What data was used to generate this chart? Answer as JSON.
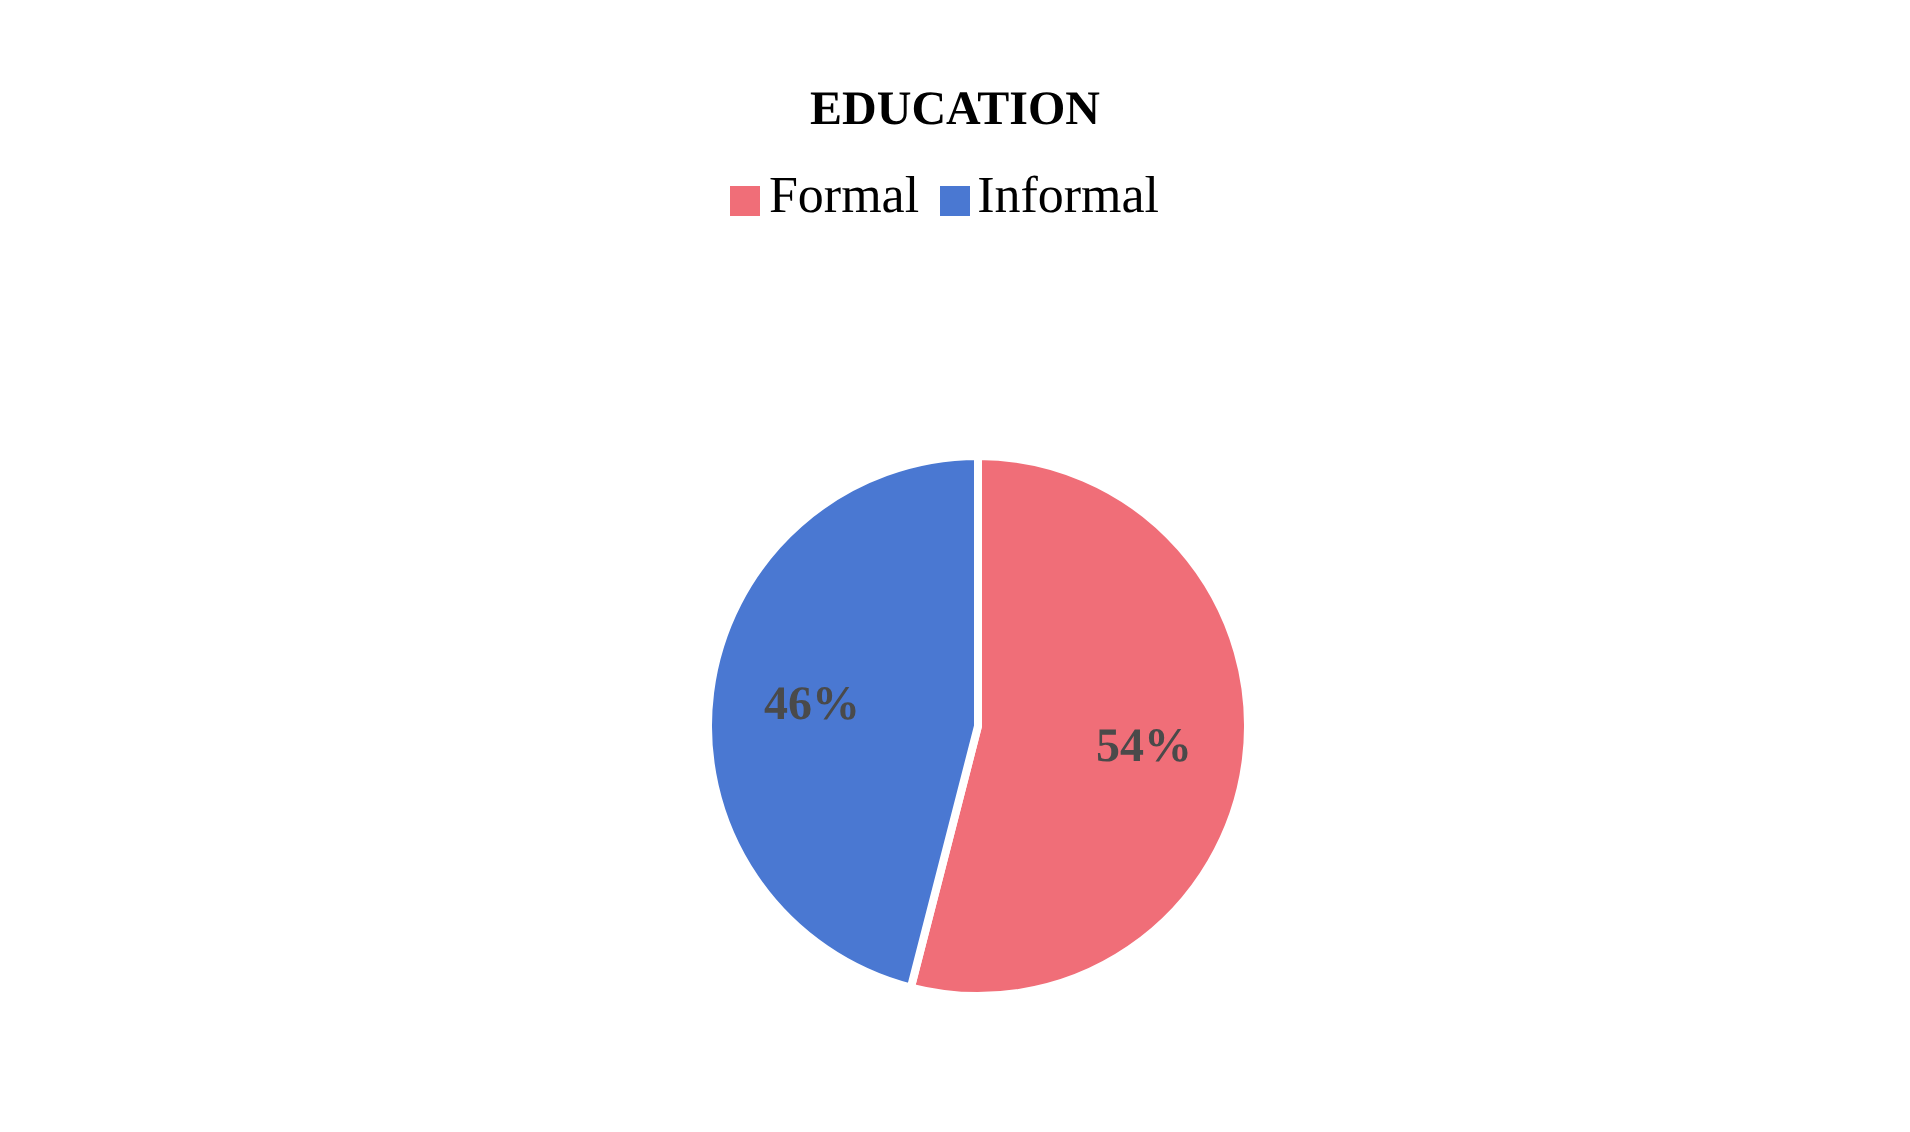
{
  "chart_data": {
    "type": "pie",
    "title": "EDUCATION",
    "categories": [
      "Formal",
      "Informal"
    ],
    "values": [
      54,
      46
    ],
    "colors": [
      "#f06e78",
      "#4a78d2"
    ],
    "value_labels": [
      "54%",
      "46%"
    ],
    "legend": "top"
  }
}
